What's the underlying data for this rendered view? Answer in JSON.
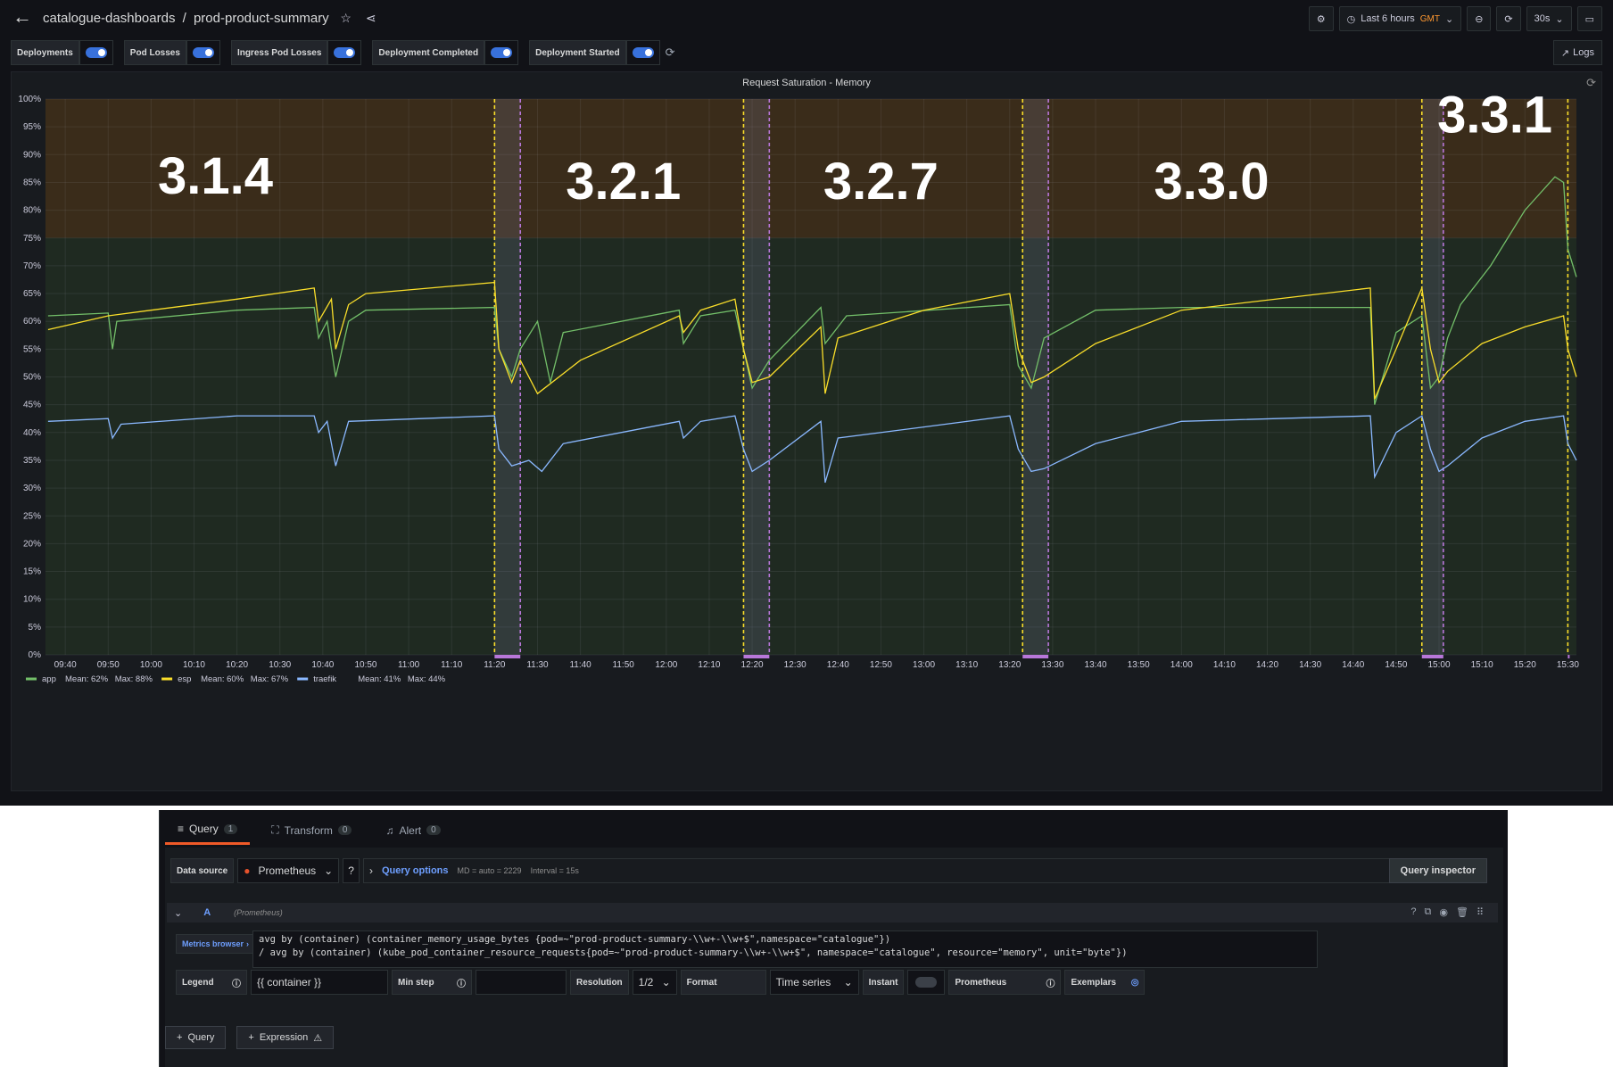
{
  "header": {
    "folder": "catalogue-dashboards",
    "separator": "/",
    "dashboard": "prod-product-summary",
    "time_range": "Last 6 hours",
    "timezone": "GMT",
    "refresh": "30s"
  },
  "variables": [
    {
      "label": "Deployments",
      "on": true
    },
    {
      "label": "Pod Losses",
      "on": true
    },
    {
      "label": "Ingress Pod Losses",
      "on": true
    },
    {
      "label": "Deployment Completed",
      "on": true
    },
    {
      "label": "Deployment Started",
      "on": true
    }
  ],
  "logs_label": "Logs",
  "panel": {
    "title": "Request Saturation - Memory"
  },
  "chart_data": {
    "type": "line",
    "title": "Request Saturation - Memory",
    "ylim": [
      0,
      100
    ],
    "y_ticks": [
      "0%",
      "5%",
      "10%",
      "15%",
      "20%",
      "25%",
      "30%",
      "35%",
      "40%",
      "45%",
      "50%",
      "55%",
      "60%",
      "65%",
      "70%",
      "75%",
      "80%",
      "85%",
      "90%",
      "95%",
      "100%"
    ],
    "x_ticks": [
      "09:40",
      "09:50",
      "10:00",
      "10:10",
      "10:20",
      "10:30",
      "10:40",
      "10:50",
      "11:00",
      "11:10",
      "11:20",
      "11:30",
      "11:40",
      "11:50",
      "12:00",
      "12:10",
      "12:20",
      "12:30",
      "12:40",
      "12:50",
      "13:00",
      "13:10",
      "13:20",
      "13:30",
      "13:40",
      "13:50",
      "14:00",
      "14:10",
      "14:20",
      "14:30",
      "14:40",
      "14:50",
      "15:00",
      "15:10",
      "15:20",
      "15:30"
    ],
    "threshold": {
      "value": 75,
      "above_color": "#3a2c1a",
      "below_color": "#1f2a21"
    },
    "version_labels": [
      {
        "text": "3.1.4",
        "time": "10:15",
        "y": 83
      },
      {
        "text": "3.2.1",
        "time": "11:50",
        "y": 82
      },
      {
        "text": "3.2.7",
        "time": "12:50",
        "y": 82
      },
      {
        "text": "3.3.0",
        "time": "14:07",
        "y": 82
      },
      {
        "text": "3.3.1",
        "time": "15:13",
        "y": 94
      }
    ],
    "deployments": [
      {
        "start": "11:20",
        "end": "11:26"
      },
      {
        "start": "12:18",
        "end": "12:24"
      },
      {
        "start": "13:23",
        "end": "13:29"
      },
      {
        "start": "14:56",
        "end": "15:01"
      },
      {
        "start": "15:30",
        "end": "15:30"
      }
    ],
    "series": [
      {
        "name": "app",
        "color": "#73bf69",
        "mean": "Mean: 62%",
        "max": "Max: 88%",
        "points": [
          [
            "09:36",
            61
          ],
          [
            "09:50",
            61.5
          ],
          [
            "09:51",
            55
          ],
          [
            "09:52",
            60
          ],
          [
            "10:20",
            62
          ],
          [
            "10:38",
            62.5
          ],
          [
            "10:39",
            57
          ],
          [
            "10:41",
            60
          ],
          [
            "10:43",
            50
          ],
          [
            "10:46",
            60
          ],
          [
            "10:50",
            62
          ],
          [
            "11:20",
            62.5
          ],
          [
            "11:21",
            55
          ],
          [
            "11:24",
            50
          ],
          [
            "11:26",
            55
          ],
          [
            "11:30",
            60
          ],
          [
            "11:33",
            49
          ],
          [
            "11:36",
            58
          ],
          [
            "12:03",
            62
          ],
          [
            "12:04",
            56
          ],
          [
            "12:08",
            61
          ],
          [
            "12:16",
            62
          ],
          [
            "12:18",
            55
          ],
          [
            "12:20",
            48
          ],
          [
            "12:24",
            53
          ],
          [
            "12:36",
            62.5
          ],
          [
            "12:37",
            56
          ],
          [
            "12:42",
            61
          ],
          [
            "13:20",
            63
          ],
          [
            "13:22",
            52
          ],
          [
            "13:25",
            48
          ],
          [
            "13:28",
            57
          ],
          [
            "13:40",
            62
          ],
          [
            "14:00",
            62.5
          ],
          [
            "14:44",
            62.5
          ],
          [
            "14:45",
            45
          ],
          [
            "14:50",
            58
          ],
          [
            "14:56",
            61
          ],
          [
            "14:58",
            48
          ],
          [
            "15:00",
            50
          ],
          [
            "15:02",
            57
          ],
          [
            "15:05",
            63
          ],
          [
            "15:12",
            70
          ],
          [
            "15:20",
            80
          ],
          [
            "15:27",
            86
          ],
          [
            "15:29",
            85
          ],
          [
            "15:30",
            73
          ],
          [
            "15:32",
            68
          ]
        ]
      },
      {
        "name": "esp",
        "color": "#fade2a",
        "mean": "Mean: 60%",
        "max": "Max: 67%",
        "points": [
          [
            "09:36",
            58.5
          ],
          [
            "09:50",
            61
          ],
          [
            "10:00",
            62
          ],
          [
            "10:20",
            64
          ],
          [
            "10:38",
            66
          ],
          [
            "10:39",
            60
          ],
          [
            "10:42",
            64
          ],
          [
            "10:43",
            55
          ],
          [
            "10:46",
            63
          ],
          [
            "10:50",
            65
          ],
          [
            "11:20",
            67
          ],
          [
            "11:21",
            55
          ],
          [
            "11:24",
            49
          ],
          [
            "11:26",
            53
          ],
          [
            "11:30",
            47
          ],
          [
            "11:40",
            53
          ],
          [
            "12:03",
            61
          ],
          [
            "12:04",
            58
          ],
          [
            "12:08",
            62
          ],
          [
            "12:16",
            64
          ],
          [
            "12:18",
            55
          ],
          [
            "12:20",
            49
          ],
          [
            "12:24",
            50
          ],
          [
            "12:36",
            59
          ],
          [
            "12:37",
            47
          ],
          [
            "12:40",
            57
          ],
          [
            "13:00",
            62
          ],
          [
            "13:20",
            65
          ],
          [
            "13:22",
            55
          ],
          [
            "13:25",
            49
          ],
          [
            "13:28",
            50
          ],
          [
            "13:40",
            56
          ],
          [
            "14:00",
            62
          ],
          [
            "14:44",
            66
          ],
          [
            "14:45",
            46
          ],
          [
            "14:50",
            55
          ],
          [
            "14:56",
            66
          ],
          [
            "14:58",
            55
          ],
          [
            "15:00",
            49
          ],
          [
            "15:02",
            51
          ],
          [
            "15:10",
            56
          ],
          [
            "15:20",
            59
          ],
          [
            "15:29",
            61
          ],
          [
            "15:30",
            55
          ],
          [
            "15:32",
            50
          ]
        ]
      },
      {
        "name": "traefik",
        "color": "#8ab8ff",
        "mean": "Mean: 41%",
        "max": "Max: 44%",
        "points": [
          [
            "09:36",
            42
          ],
          [
            "09:50",
            42.5
          ],
          [
            "09:51",
            39
          ],
          [
            "09:53",
            41.5
          ],
          [
            "10:20",
            43
          ],
          [
            "10:38",
            43
          ],
          [
            "10:39",
            40
          ],
          [
            "10:41",
            42
          ],
          [
            "10:43",
            34
          ],
          [
            "10:46",
            42
          ],
          [
            "11:20",
            43
          ],
          [
            "11:21",
            37
          ],
          [
            "11:24",
            34
          ],
          [
            "11:28",
            35
          ],
          [
            "11:31",
            33
          ],
          [
            "11:36",
            38
          ],
          [
            "12:03",
            42
          ],
          [
            "12:04",
            39
          ],
          [
            "12:08",
            42
          ],
          [
            "12:16",
            43
          ],
          [
            "12:18",
            37
          ],
          [
            "12:20",
            33
          ],
          [
            "12:24",
            35
          ],
          [
            "12:36",
            42
          ],
          [
            "12:37",
            31
          ],
          [
            "12:40",
            39
          ],
          [
            "13:00",
            41
          ],
          [
            "13:20",
            43
          ],
          [
            "13:22",
            37
          ],
          [
            "13:25",
            33
          ],
          [
            "13:28",
            33.5
          ],
          [
            "13:40",
            38
          ],
          [
            "14:00",
            42
          ],
          [
            "14:44",
            43
          ],
          [
            "14:45",
            32
          ],
          [
            "14:50",
            40
          ],
          [
            "14:56",
            43
          ],
          [
            "14:58",
            37
          ],
          [
            "15:00",
            33
          ],
          [
            "15:02",
            34
          ],
          [
            "15:10",
            39
          ],
          [
            "15:20",
            42
          ],
          [
            "15:29",
            43
          ],
          [
            "15:30",
            38
          ],
          [
            "15:32",
            35
          ]
        ]
      }
    ]
  },
  "editor": {
    "tabs": [
      {
        "label": "Query",
        "count": "1"
      },
      {
        "label": "Transform",
        "count": "0"
      },
      {
        "label": "Alert",
        "count": "0"
      }
    ],
    "datasource_label": "Data source",
    "datasource": "Prometheus",
    "query_options": "Query options",
    "md": "MD = auto = 2229",
    "interval": "Interval = 15s",
    "query_inspector": "Query inspector",
    "query_ref": "A",
    "query_source": "(Prometheus)",
    "metrics_browser": "Metrics browser",
    "expr_line1": "avg by (container) (container_memory_usage_bytes {pod=~\"prod-product-summary-\\\\w+-\\\\w+$\",namespace=\"catalogue\"})",
    "expr_line2": "/ avg by (container) (kube_pod_container_resource_requests{pod=~\"prod-product-summary-\\\\w+-\\\\w+$\", namespace=\"catalogue\", resource=\"memory\", unit=\"byte\"})",
    "legend_label": "Legend",
    "legend_value": "{{ container }}",
    "minstep_label": "Min step",
    "resolution_label": "Resolution",
    "resolution_value": "1/2",
    "format_label": "Format",
    "format_value": "Time series",
    "instant_label": "Instant",
    "prom_label": "Prometheus",
    "exemplars_label": "Exemplars",
    "add_query": "Query",
    "add_expression": "Expression"
  }
}
